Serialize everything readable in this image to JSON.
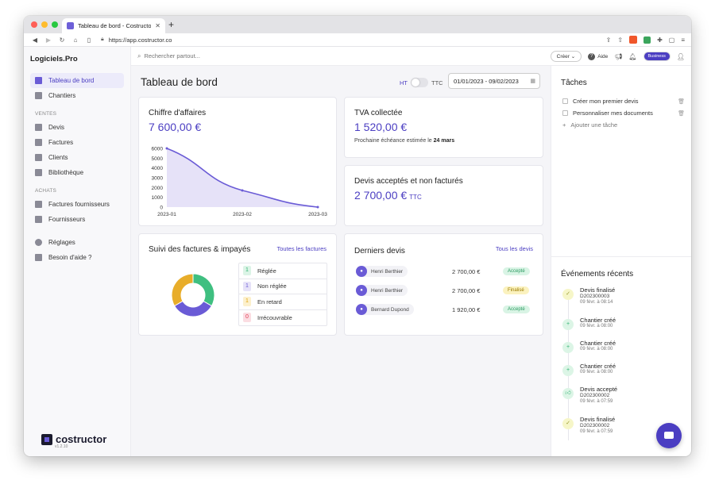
{
  "browser": {
    "tab_title": "Tableau de bord - Costructor",
    "url": "https://app.costructor.co"
  },
  "sidebar": {
    "brand": "Logiciels.Pro",
    "items": [
      {
        "label": "Tableau de bord",
        "icon": "chart-line-icon"
      },
      {
        "label": "Chantiers",
        "icon": "crane-icon"
      }
    ],
    "section_ventes": "VENTES",
    "ventes": [
      {
        "label": "Devis",
        "icon": "devis-icon"
      },
      {
        "label": "Factures",
        "icon": "invoice-icon"
      },
      {
        "label": "Clients",
        "icon": "contact-icon"
      },
      {
        "label": "Bibliothèque",
        "icon": "library-icon"
      }
    ],
    "section_achats": "ACHATS",
    "achats": [
      {
        "label": "Factures fournisseurs",
        "icon": "supplier-invoice-icon"
      },
      {
        "label": "Fournisseurs",
        "icon": "supplier-icon"
      }
    ],
    "bottom": [
      {
        "label": "Réglages",
        "icon": "gear-icon"
      },
      {
        "label": "Besoin d'aide ?",
        "icon": "help-icon"
      }
    ],
    "logo_text": "costructor",
    "version": "v1.2.10"
  },
  "topbar": {
    "search_placeholder": "Rechercher partout...",
    "create_label": "Créer",
    "help_label": "Aide",
    "plan_badge": "Business"
  },
  "dashboard": {
    "title": "Tableau de bord",
    "ht_label": "HT",
    "ttc_label": "TTC",
    "date_range": "01/01/2023 - 09/02/2023"
  },
  "revenue_card": {
    "title": "Chiffre d'affaires",
    "amount": "7 600,00 €"
  },
  "chart_data": {
    "type": "area",
    "x": [
      "2023-01",
      "2023-02",
      "2023-03"
    ],
    "y_ticks": [
      0,
      1000,
      2000,
      3000,
      4000,
      5000,
      6000
    ],
    "points": [
      {
        "x": "2023-01",
        "y": 6000
      },
      {
        "x": "2023-02",
        "y": 1700
      },
      {
        "x": "2023-03",
        "y": 0
      }
    ],
    "ylim": [
      0,
      6000
    ],
    "color": "#6a5bd6",
    "fill": "#e6e2f8"
  },
  "tva_card": {
    "title": "TVA collectée",
    "amount": "1 520,00 €",
    "next_label": "Prochaine échéance estimée le ",
    "next_date": "24 mars"
  },
  "unbilled_card": {
    "title": "Devis acceptés et non facturés",
    "amount": "2 700,00 €",
    "suffix": "TTC"
  },
  "invoices_card": {
    "title": "Suivi des factures & impayés",
    "link": "Toutes les factures",
    "legend": [
      {
        "count": "1",
        "label": "Réglée",
        "color": "#2fb171",
        "bg": "#dbf4e6"
      },
      {
        "count": "1",
        "label": "Non réglée",
        "color": "#6a5bd6",
        "bg": "#e6e2f8"
      },
      {
        "count": "1",
        "label": "En retard",
        "color": "#e2a40f",
        "bg": "#fcf0cc"
      },
      {
        "count": "0",
        "label": "Irrécouvrable",
        "color": "#e23b53",
        "bg": "#fbdde2"
      }
    ],
    "donut": [
      {
        "label": "Réglée",
        "value": 1,
        "color": "#3fbf80"
      },
      {
        "label": "Non réglée",
        "value": 1,
        "color": "#6a5bd6"
      },
      {
        "label": "En retard",
        "value": 1,
        "color": "#e8ad2a"
      }
    ]
  },
  "quotes_card": {
    "title": "Derniers devis",
    "link": "Tous les devis",
    "rows": [
      {
        "client": "Henri Berthier",
        "amount": "2 700,00 €",
        "status": "Accepté",
        "status_color": "#2a9a60",
        "status_bg": "#d9f4e5"
      },
      {
        "client": "Henri Berthier",
        "amount": "2 700,00 €",
        "status": "Finalisé",
        "status_color": "#9a7a00",
        "status_bg": "#fbf2bf"
      },
      {
        "client": "Bernard Dupond",
        "amount": "1 920,00 €",
        "status": "Accepté",
        "status_color": "#2a9a60",
        "status_bg": "#d9f4e5"
      }
    ]
  },
  "tasks": {
    "title": "Tâches",
    "items": [
      {
        "label": "Créer mon premier devis"
      },
      {
        "label": "Personnaliser mes documents"
      }
    ],
    "add_label": "Ajouter une tâche"
  },
  "events": {
    "title": "Événements récents",
    "items": [
      {
        "title": "Devis finalisé",
        "ref": "D202300003",
        "time": "09 févr. à 08:14",
        "icon": "check-icon",
        "bg": "#f6f6c8",
        "fg": "#9a9a30"
      },
      {
        "title": "Chantier créé",
        "ref": "",
        "time": "09 févr. à 08:00",
        "icon": "plus-icon",
        "bg": "#dcf5e6",
        "fg": "#2fb171"
      },
      {
        "title": "Chantier créé",
        "ref": "",
        "time": "09 févr. à 08:00",
        "icon": "plus-icon",
        "bg": "#dcf5e6",
        "fg": "#2fb171"
      },
      {
        "title": "Chantier créé",
        "ref": "",
        "time": "09 févr. à 08:00",
        "icon": "plus-icon",
        "bg": "#dcf5e6",
        "fg": "#2fb171"
      },
      {
        "title": "Devis accepté",
        "ref": "D202300002",
        "time": "09 févr. à 07:59",
        "icon": "thumbs-up-icon",
        "bg": "#dcf5e6",
        "fg": "#2fb171"
      },
      {
        "title": "Devis finalisé",
        "ref": "D202300002",
        "time": "09 févr. à 07:59",
        "icon": "check-icon",
        "bg": "#f6f6c8",
        "fg": "#9a9a30"
      }
    ]
  }
}
